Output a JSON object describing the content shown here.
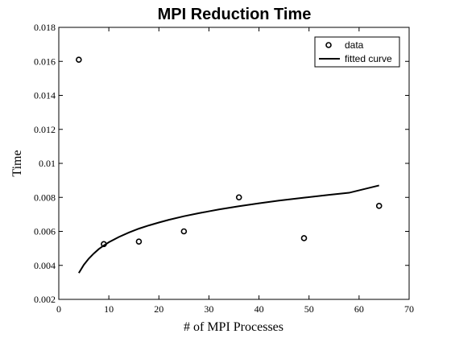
{
  "chart_data": {
    "type": "scatter",
    "title": "MPI Reduction Time",
    "xlabel": "# of MPI Processes",
    "ylabel": "Time",
    "xlim": [
      0,
      70
    ],
    "ylim": [
      0.002,
      0.018
    ],
    "xticks": [
      0,
      10,
      20,
      30,
      40,
      50,
      60,
      70
    ],
    "xtick_labels": [
      "0",
      "10",
      "20",
      "30",
      "40",
      "50",
      "60",
      "70"
    ],
    "yticks": [
      0.002,
      0.004,
      0.006,
      0.008,
      0.01,
      0.012,
      0.014,
      0.016,
      0.018
    ],
    "ytick_labels": [
      "0.002",
      "0.004",
      "0.006",
      "0.008",
      "0.01",
      "0.012",
      "0.014",
      "0.016",
      "0.018"
    ],
    "grid": false,
    "legend_position": "top-right",
    "series": [
      {
        "name": "data",
        "kind": "markers",
        "marker": "circle",
        "x": [
          4,
          9,
          16,
          25,
          36,
          49,
          64
        ],
        "y": [
          0.0161,
          0.00525,
          0.0054,
          0.006,
          0.008,
          0.0056,
          0.0075
        ]
      },
      {
        "name": "fitted curve",
        "kind": "line",
        "x": [
          4,
          5,
          6,
          7,
          8,
          9,
          10,
          12,
          14,
          16,
          18,
          20,
          22,
          25,
          28,
          30,
          32,
          36,
          40,
          44,
          49,
          54,
          58,
          64
        ],
        "y": [
          0.00355,
          0.00403,
          0.0044,
          0.0047,
          0.00496,
          0.00517,
          0.00536,
          0.00567,
          0.00593,
          0.00616,
          0.00635,
          0.00652,
          0.00668,
          0.00689,
          0.00707,
          0.00718,
          0.00729,
          0.00748,
          0.00765,
          0.00781,
          0.00798,
          0.00815,
          0.00827,
          0.0087
        ]
      }
    ]
  }
}
